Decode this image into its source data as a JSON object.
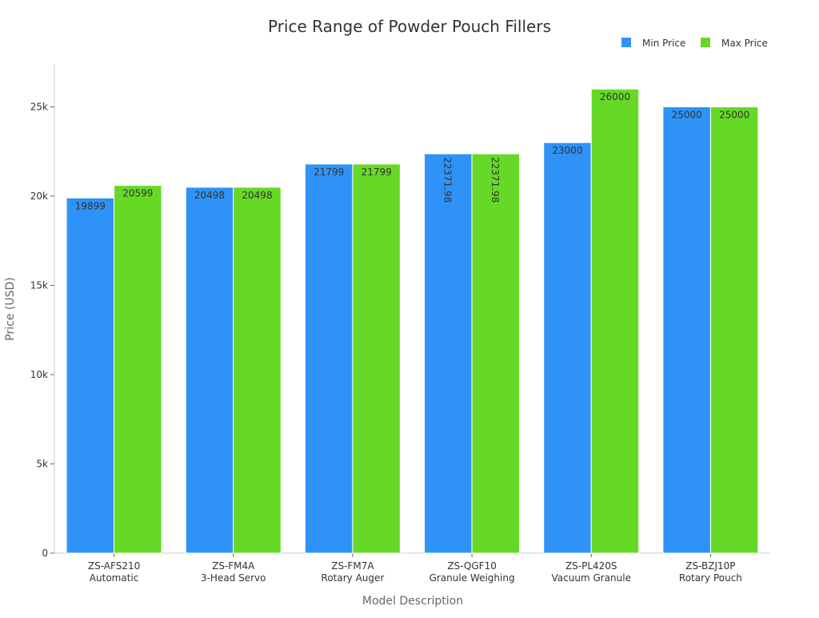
{
  "chart_data": {
    "type": "bar",
    "title": "Price Range of Powder Pouch Fillers",
    "xlabel": "Model Description",
    "ylabel": "Price (USD)",
    "ylim": [
      0,
      27400
    ],
    "yticks": [
      0,
      5000,
      10000,
      15000,
      20000,
      25000
    ],
    "ytick_labels": [
      "0",
      "5k",
      "10k",
      "15k",
      "20k",
      "25k"
    ],
    "grid": false,
    "legend_position": "top-right",
    "categories": [
      [
        "ZS-AFS210",
        "Automatic"
      ],
      [
        "ZS-FM4A",
        "3-Head Servo"
      ],
      [
        "ZS-FM7A",
        "Rotary Auger"
      ],
      [
        "ZS-QGF10",
        "Granule Weighing"
      ],
      [
        "ZS-PL420S",
        "Vacuum Granule"
      ],
      [
        "ZS-BZJ10P",
        "Rotary Pouch"
      ]
    ],
    "series": [
      {
        "name": "Min Price",
        "color": "#2f92f7",
        "values": [
          19899,
          20498,
          21799,
          22371.98,
          23000,
          25000
        ],
        "labels": [
          "19899",
          "20498",
          "21799",
          "22371.98",
          "23000",
          "25000"
        ]
      },
      {
        "name": "Max Price",
        "color": "#66d927",
        "values": [
          20599,
          20498,
          21799,
          22371.98,
          26000,
          25000
        ],
        "labels": [
          "20599",
          "20498",
          "21799",
          "22371.98",
          "26000",
          "25000"
        ]
      }
    ]
  }
}
